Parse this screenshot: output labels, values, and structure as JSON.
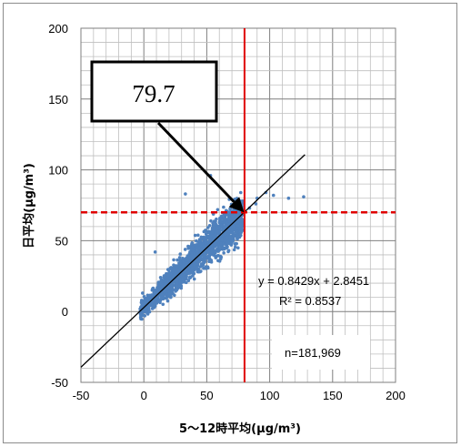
{
  "chart_data": {
    "type": "scatter",
    "xlabel": "5～12時平均(μg/m³)",
    "ylabel": "日平均(μg/m³)",
    "xlim": [
      -50,
      200
    ],
    "ylim": [
      -50,
      200
    ],
    "x_ticks": [
      "-50",
      "0",
      "50",
      "100",
      "150",
      "200"
    ],
    "y_ticks": [
      "-50",
      "0",
      "50",
      "100",
      "150",
      "200"
    ],
    "grid": true,
    "point_color": "#4f81bd",
    "trendline": {
      "slope": 0.8429,
      "intercept": 2.8451,
      "x_range": [
        -50,
        128
      ],
      "color": "#000000"
    },
    "equation": "y = 0.8429x + 2.8451",
    "r_squared": "R² = 0.8537",
    "n_label": "n=181,969",
    "threshold_x": {
      "value": 80,
      "color": "#e00000",
      "style": "solid"
    },
    "threshold_y": {
      "value": 70,
      "color": "#e00000",
      "style": "dashed"
    },
    "callout": {
      "text": "79.7",
      "target": [
        79.7,
        70
      ]
    },
    "outliers": [
      [
        53,
        96
      ],
      [
        77,
        84
      ],
      [
        90,
        80
      ],
      [
        97,
        84
      ],
      [
        103,
        82
      ],
      [
        115,
        80
      ],
      [
        127,
        81
      ],
      [
        89,
        76
      ],
      [
        84,
        73
      ],
      [
        -1,
        13
      ],
      [
        9,
        42
      ],
      [
        33,
        83
      ]
    ]
  }
}
